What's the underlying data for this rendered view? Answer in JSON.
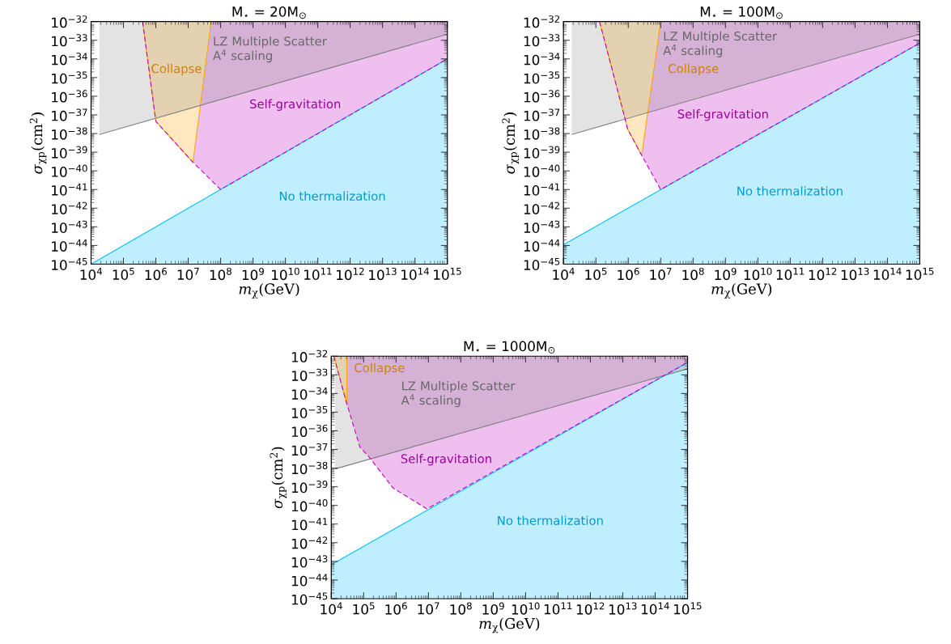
{
  "chart_data": [
    {
      "type": "line",
      "title": "M$_{⋆}$ = 20M$_{⊙}$",
      "xlabel": "*m*$_{χ}$(GeV)",
      "ylabel": "*σ*$_{χp}$(cm$^{2}$)",
      "log": "xy",
      "xlim": [
        10000.0,
        1000000000000000.0
      ],
      "ylim": [
        1e-45,
        1e-32
      ],
      "xticks": [
        {
          "value": 10000.0,
          "label": "10$^{4}$"
        },
        {
          "value": 100000.0,
          "label": "10$^{5}$"
        },
        {
          "value": 1000000.0,
          "label": "10$^{6}$"
        },
        {
          "value": 10000000.0,
          "label": "10$^{7}$"
        },
        {
          "value": 100000000.0,
          "label": "10$^{8}$"
        },
        {
          "value": 1000000000.0,
          "label": "10$^{9}$"
        },
        {
          "value": 10000000000.0,
          "label": "10$^{10}$"
        },
        {
          "value": 100000000000.0,
          "label": "10$^{11}$"
        },
        {
          "value": 1000000000000.0,
          "label": "10$^{12}$"
        },
        {
          "value": 10000000000000.0,
          "label": "10$^{13}$"
        },
        {
          "value": 100000000000000.0,
          "label": "10$^{14}$"
        },
        {
          "value": 1000000000000000.0,
          "label": "10$^{15}$"
        }
      ],
      "yticks": [
        {
          "value": 1e-45,
          "label": "10$^{−45}$"
        },
        {
          "value": 1e-44,
          "label": "10$^{−44}$"
        },
        {
          "value": 1e-43,
          "label": "10$^{−43}$"
        },
        {
          "value": 1e-42,
          "label": "10$^{−42}$"
        },
        {
          "value": 1e-41,
          "label": "10$^{−41}$"
        },
        {
          "value": 1e-40,
          "label": "10$^{−40}$"
        },
        {
          "value": 1e-39,
          "label": "10$^{−39}$"
        },
        {
          "value": 1e-38,
          "label": "10$^{−38}$"
        },
        {
          "value": 1e-37,
          "label": "10$^{−37}$"
        },
        {
          "value": 1e-36,
          "label": "10$^{−36}$"
        },
        {
          "value": 1e-35,
          "label": "10$^{−35}$"
        },
        {
          "value": 1e-34,
          "label": "10$^{−34}$"
        },
        {
          "value": 1e-33,
          "label": "10$^{−33}$"
        },
        {
          "value": 1e-32,
          "label": "10$^{−32}$"
        }
      ],
      "series": [
        {
          "type": "area",
          "name": "No thermalization",
          "color": "#00bfff",
          "line_style": "solid",
          "x": [
            10000.0,
            1000000000000000.0
          ],
          "values": [
            1e-45,
            1e-34
          ]
        },
        {
          "name": "Self-gravitation",
          "color": "#c000c0",
          "line_style": "dashed",
          "x": [
            390000.0,
            1000000.0,
            14000000.0,
            100000000.0,
            1000000000000000.0
          ],
          "values": [
            1e-32,
            4.5e-38,
            2.9e-40,
            1e-41,
            1e-34
          ],
          "lower": [
            1e-32,
            4.5e-38,
            2.9e-40,
            1e-41,
            1e-34
          ],
          "upper": [
            1e-32,
            1e-32,
            1e-32,
            1e-32,
            1e-32
          ]
        },
        {
          "name": "Collapse",
          "color": "#ffa500",
          "line_style": "solid",
          "x": [
            390000.0,
            1000000.0,
            14000000.0,
            51000000.0
          ],
          "values": [
            1e-32,
            4.5e-38,
            2.9e-40,
            1e-32
          ],
          "lower": [
            1e-32,
            4.5e-38,
            2.9e-40,
            1e-32
          ],
          "upper": [
            1e-32,
            1e-32,
            1e-32,
            1e-32
          ]
        },
        {
          "name": "LZ Multiple Scatter A$^{4}$ scaling",
          "color": "#808080",
          "line_style": "solid",
          "x": [
            18000.0,
            1000000000000000.0
          ],
          "values": [
            8.9e-39,
            2.1e-33
          ],
          "lower": [
            8.9e-39,
            2.1e-33
          ],
          "upper": [
            1e-32,
            1e-32
          ]
        }
      ]
    },
    {
      "type": "line",
      "title": "M$_{⋆}$ = 100M$_{⊙}$",
      "xlabel": "*m*$_{χ}$(GeV)",
      "ylabel": "*σ*$_{χp}$(cm$^{2}$)",
      "log": "xy",
      "xlim": [
        10000.0,
        1000000000000000.0
      ],
      "ylim": [
        1e-45,
        1e-32
      ],
      "xticks": [
        {
          "value": 10000.0,
          "label": "10$^{4}$"
        },
        {
          "value": 100000.0,
          "label": "10$^{5}$"
        },
        {
          "value": 1000000.0,
          "label": "10$^{6}$"
        },
        {
          "value": 10000000.0,
          "label": "10$^{7}$"
        },
        {
          "value": 100000000.0,
          "label": "10$^{8}$"
        },
        {
          "value": 1000000000.0,
          "label": "10$^{9}$"
        },
        {
          "value": 10000000000.0,
          "label": "10$^{10}$"
        },
        {
          "value": 100000000000.0,
          "label": "10$^{11}$"
        },
        {
          "value": 1000000000000.0,
          "label": "10$^{12}$"
        },
        {
          "value": 10000000000000.0,
          "label": "10$^{13}$"
        },
        {
          "value": 100000000000000.0,
          "label": "10$^{14}$"
        },
        {
          "value": 1000000000000000.0,
          "label": "10$^{15}$"
        }
      ],
      "yticks": [
        {
          "value": 1e-45,
          "label": "10$^{−45}$"
        },
        {
          "value": 1e-44,
          "label": "10$^{−44}$"
        },
        {
          "value": 1e-43,
          "label": "10$^{−43}$"
        },
        {
          "value": 1e-42,
          "label": "10$^{−42}$"
        },
        {
          "value": 1e-41,
          "label": "10$^{−41}$"
        },
        {
          "value": 1e-40,
          "label": "10$^{−40}$"
        },
        {
          "value": 1e-39,
          "label": "10$^{−39}$"
        },
        {
          "value": 1e-38,
          "label": "10$^{−38}$"
        },
        {
          "value": 1e-37,
          "label": "10$^{−37}$"
        },
        {
          "value": 1e-36,
          "label": "10$^{−36}$"
        },
        {
          "value": 1e-35,
          "label": "10$^{−35}$"
        },
        {
          "value": 1e-34,
          "label": "10$^{−34}$"
        },
        {
          "value": 1e-33,
          "label": "10$^{−33}$"
        },
        {
          "value": 1e-32,
          "label": "10$^{−32}$"
        }
      ],
      "series": [
        {
          "type": "area",
          "name": "No thermalization",
          "color": "#00bfff",
          "line_style": "solid",
          "x": [
            10000.0,
            1000000000000000.0
          ],
          "values": [
            1.1e-44,
            7e-34
          ]
        },
        {
          "name": "Self-gravitation",
          "color": "#c000c0",
          "line_style": "dashed",
          "x": [
            130000.0,
            800000.0,
            960000.0,
            2600000.0,
            10000000.0,
            1000000000000000.0
          ],
          "values": [
            1e-32,
            6e-38,
            1.7e-38,
            6.8e-40,
            1e-41,
            7e-34
          ],
          "lower": [
            1e-32,
            6e-38,
            1.7e-38,
            6.8e-40,
            1e-41,
            7e-34
          ],
          "upper": [
            1e-32,
            1e-32,
            1e-32,
            1e-32,
            1e-32,
            1e-32
          ]
        },
        {
          "name": "Collapse",
          "color": "#ffa500",
          "line_style": "solid",
          "x": [
            130000.0,
            800000.0,
            960000.0,
            2600000.0,
            10000000.0
          ],
          "values": [
            1e-32,
            6e-38,
            1.7e-38,
            6.8e-40,
            1e-32
          ],
          "lower": [
            1e-32,
            6e-38,
            1.7e-38,
            6.8e-40,
            1e-32
          ],
          "upper": [
            1e-32,
            1e-32,
            1e-32,
            1e-32,
            1e-32
          ]
        },
        {
          "name": "LZ Multiple Scatter A$^{4}$ scaling",
          "color": "#808080",
          "line_style": "solid",
          "x": [
            18000.0,
            1000000000000000.0
          ],
          "values": [
            8.9e-39,
            2.1e-33
          ],
          "lower": [
            8.9e-39,
            2.1e-33
          ],
          "upper": [
            1e-32,
            1e-32
          ]
        }
      ]
    },
    {
      "type": "line",
      "title": "M$_{⋆}$ = 1000M$_{⊙}$",
      "xlabel": "*m*$_{χ}$(GeV)",
      "ylabel": "*σ*$_{χp}$(cm$^{2}$)",
      "log": "xy",
      "xlim": [
        10000.0,
        1000000000000000.0
      ],
      "ylim": [
        1e-45,
        1e-32
      ],
      "xticks": [
        {
          "value": 10000.0,
          "label": "10$^{4}$"
        },
        {
          "value": 100000.0,
          "label": "10$^{5}$"
        },
        {
          "value": 1000000.0,
          "label": "10$^{6}$"
        },
        {
          "value": 10000000.0,
          "label": "10$^{7}$"
        },
        {
          "value": 100000000.0,
          "label": "10$^{8}$"
        },
        {
          "value": 1000000000.0,
          "label": "10$^{9}$"
        },
        {
          "value": 10000000000.0,
          "label": "10$^{10}$"
        },
        {
          "value": 100000000000.0,
          "label": "10$^{11}$"
        },
        {
          "value": 1000000000000.0,
          "label": "10$^{12}$"
        },
        {
          "value": 10000000000000.0,
          "label": "10$^{13}$"
        },
        {
          "value": 100000000000000.0,
          "label": "10$^{14}$"
        },
        {
          "value": 1000000000000000.0,
          "label": "10$^{15}$"
        }
      ],
      "yticks": [
        {
          "value": 1e-45,
          "label": "10$^{−45}$"
        },
        {
          "value": 1e-44,
          "label": "10$^{−44}$"
        },
        {
          "value": 1e-43,
          "label": "10$^{−43}$"
        },
        {
          "value": 1e-42,
          "label": "10$^{−42}$"
        },
        {
          "value": 1e-41,
          "label": "10$^{−41}$"
        },
        {
          "value": 1e-40,
          "label": "10$^{−40}$"
        },
        {
          "value": 1e-39,
          "label": "10$^{−39}$"
        },
        {
          "value": 1e-38,
          "label": "10$^{−38}$"
        },
        {
          "value": 1e-37,
          "label": "10$^{−37}$"
        },
        {
          "value": 1e-36,
          "label": "10$^{−36}$"
        },
        {
          "value": 1e-35,
          "label": "10$^{−35}$"
        },
        {
          "value": 1e-34,
          "label": "10$^{−34}$"
        },
        {
          "value": 1e-33,
          "label": "10$^{−33}$"
        },
        {
          "value": 1e-32,
          "label": "10$^{−32}$"
        }
      ],
      "series": [
        {
          "type": "area",
          "name": "No thermalization",
          "color": "#00bfff",
          "line_style": "solid",
          "x": [
            10000.0,
            1000000000000000.0
          ],
          "values": [
            6.6e-44,
            4.6e-33
          ]
        },
        {
          "name": "Self-gravitation",
          "color": "#c000c0",
          "line_style": "dashed",
          "x": [
            12000.0,
            30000.0,
            77000.0,
            140000.0,
            800000.0,
            9000000.0,
            1000000000000000.0
          ],
          "values": [
            1e-32,
            2.9e-35,
            1.3e-37,
            4.4e-38,
            8.7e-40,
            6.5e-41,
            4.6e-33
          ],
          "lower": [
            1e-32,
            2.9e-35,
            1.3e-37,
            4.4e-38,
            8.7e-40,
            6.5e-41,
            4.6e-33
          ],
          "upper": [
            1e-32,
            1e-32,
            1e-32,
            1e-32,
            1e-32,
            1e-32,
            1e-32
          ]
        },
        {
          "name": "Collapse",
          "color": "#ffa500",
          "line_style": "solid",
          "x": [
            12000.0,
            30000.0,
            30000.0
          ],
          "values": [
            1e-32,
            2.9e-35,
            1e-32
          ],
          "lower": [
            1e-32,
            2.9e-35,
            1e-32
          ],
          "upper": [
            1e-32,
            1e-32,
            1e-32
          ]
        },
        {
          "name": "LZ Multiple Scatter A$^{4}$ scaling",
          "color": "#808080",
          "line_style": "solid",
          "x": [
            13000.0,
            1000000000000000.0
          ],
          "values": [
            9e-39,
            2.1e-33
          ],
          "lower": [
            9e-39,
            2.1e-33
          ],
          "upper": [
            1e-32,
            1e-32
          ]
        }
      ]
    }
  ]
}
